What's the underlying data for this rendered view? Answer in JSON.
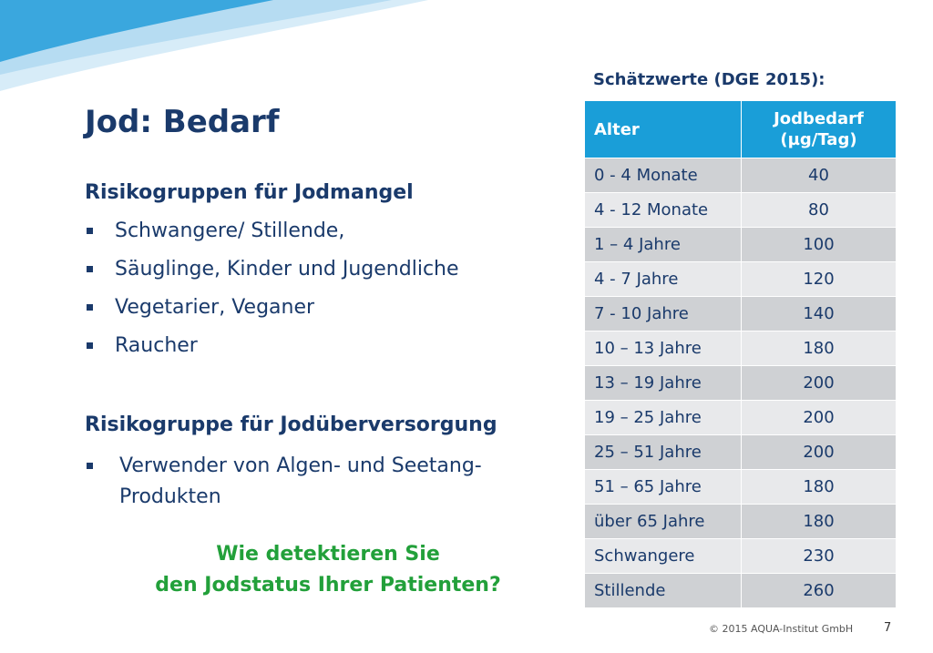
{
  "slide": {
    "title": "Jod: Bedarf",
    "risk_heading": "Risikogruppen für Jodmangel",
    "risk_items": [
      "Schwangere/ Stillende,",
      "Säuglinge, Kinder und Jugendliche",
      "Vegetarier, Veganer",
      "Raucher"
    ],
    "over_heading": "Risikogruppe für Jodüberversorgung",
    "over_item_line1": "Verwender von Algen- und Seetang-",
    "over_item_line2": "Produkten",
    "question_line1": "Wie detektieren Sie",
    "question_line2": "den Jodstatus Ihrer Patienten?"
  },
  "table": {
    "title": "Schätzwerte (DGE 2015):",
    "col1_header": "Alter",
    "col2_header_line1": "Jodbedarf",
    "col2_header_line2": "(µg/Tag)",
    "rows": [
      {
        "age": "0 - 4  Monate",
        "value": "40"
      },
      {
        "age": "4 - 12 Monate",
        "value": "80"
      },
      {
        "age": "1 – 4 Jahre",
        "value": "100"
      },
      {
        "age": "4 - 7 Jahre",
        "value": "120"
      },
      {
        "age": "7 - 10 Jahre",
        "value": "140"
      },
      {
        "age": "10 – 13 Jahre",
        "value": "180"
      },
      {
        "age": "13 – 19 Jahre",
        "value": "200"
      },
      {
        "age": "19 – 25 Jahre",
        "value": "200"
      },
      {
        "age": "25 – 51 Jahre",
        "value": "200"
      },
      {
        "age": "51 – 65 Jahre",
        "value": "180"
      },
      {
        "age": "über 65 Jahre",
        "value": "180"
      },
      {
        "age": "Schwangere",
        "value": "230"
      },
      {
        "age": "Stillende",
        "value": "260"
      }
    ]
  },
  "footer": {
    "copyright": "© 2015 AQUA-Institut GmbH",
    "page_number": "7"
  },
  "colors": {
    "title": "#1a3a6b",
    "accent_blue": "#1a9ed8",
    "question_green": "#22a03a",
    "row_dark": "#cfd1d4",
    "row_light": "#e8e9eb"
  }
}
